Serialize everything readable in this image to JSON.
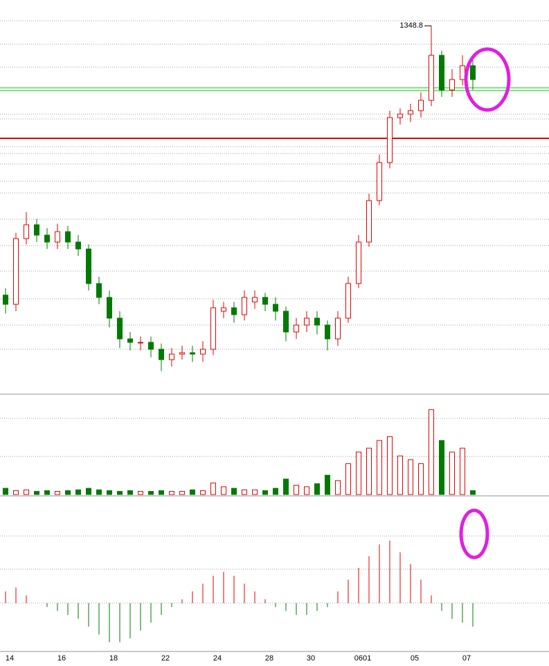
{
  "chart_data": {
    "type": "candlestick",
    "categories": [
      "14",
      null,
      null,
      null,
      null,
      "16",
      null,
      null,
      null,
      null,
      "18",
      null,
      null,
      null,
      null,
      "22",
      null,
      null,
      null,
      null,
      "24",
      null,
      null,
      null,
      null,
      "28",
      null,
      null,
      null,
      "30",
      null,
      null,
      null,
      null,
      "0601",
      null,
      null,
      null,
      null,
      "05",
      null,
      null,
      null,
      null,
      "07",
      null
    ],
    "open": [
      1232,
      1228,
      1256.5,
      1262.5,
      1258,
      1255,
      1259.5,
      1255,
      1252,
      1237,
      1231,
      1222,
      1213,
      1211.5,
      1211.5,
      1208.5,
      1204,
      1206.4,
      1207,
      1206.4,
      1208.5,
      1225,
      1226.5,
      1223.5,
      1229,
      1231,
      1228,
      1225,
      1216,
      1219,
      1222,
      1219,
      1213,
      1222,
      1237,
      1255,
      1273,
      1289.5,
      1309,
      1310.5,
      1312,
      1316.5,
      1336,
      1321,
      1325.5,
      1331.5
    ],
    "high": [
      1235,
      1259,
      1268,
      1265,
      1261,
      1263,
      1262,
      1258,
      1254,
      1240,
      1234,
      1225,
      1216,
      1214,
      1214,
      1211,
      1209,
      1210,
      1210,
      1212,
      1230,
      1229,
      1229,
      1234,
      1234,
      1233,
      1231,
      1227,
      1222,
      1225,
      1225,
      1221,
      1225,
      1240,
      1258,
      1276,
      1293,
      1312,
      1313,
      1315,
      1320,
      1348.8,
      1338,
      1330,
      1336,
      1334
    ],
    "low": [
      1224,
      1225,
      1254,
      1255,
      1252,
      1252,
      1252,
      1249,
      1234,
      1228,
      1218,
      1209,
      1208,
      1208,
      1205,
      1199,
      1201,
      1204,
      1203,
      1203,
      1206,
      1222,
      1220,
      1221,
      1226,
      1225,
      1221,
      1212,
      1213,
      1216,
      1215,
      1208,
      1210,
      1220,
      1235,
      1253,
      1271,
      1287,
      1306,
      1307,
      1309,
      1314,
      1318,
      1318,
      1323,
      1321
    ],
    "close": [
      1228,
      1256.5,
      1262.5,
      1258,
      1255,
      1259.5,
      1255,
      1252,
      1237,
      1231,
      1222,
      1213,
      1211.5,
      1211.5,
      1208.5,
      1204,
      1206.4,
      1207,
      1206.4,
      1208.5,
      1226.5,
      1226.5,
      1223.5,
      1231,
      1231,
      1228,
      1225,
      1216,
      1219,
      1222,
      1219,
      1213,
      1222,
      1237,
      1255,
      1273,
      1289.5,
      1309,
      1310.5,
      1312,
      1316.5,
      1336,
      1321,
      1325.5,
      1331.5,
      1325.5
    ],
    "up_color": "#e00000",
    "down_color": "#007a00",
    "ylim": [
      1189,
      1360
    ],
    "annotation": "1348.8",
    "volume": {
      "values": [
        8,
        5,
        6,
        4,
        5,
        4,
        5,
        6,
        8,
        6,
        5,
        4,
        5,
        4,
        4,
        5,
        4,
        4,
        6,
        5,
        15,
        10,
        8,
        6,
        6,
        5,
        8,
        20,
        12,
        10,
        14,
        25,
        18,
        40,
        55,
        60,
        70,
        75,
        50,
        45,
        40,
        110,
        70,
        55,
        60,
        5
      ],
      "ylim": [
        0,
        130
      ]
    },
    "macd": {
      "values": [
        15,
        20,
        10,
        0,
        -5,
        -10,
        -15,
        -20,
        -30,
        -40,
        -50,
        -50,
        -45,
        -35,
        -25,
        -15,
        -5,
        5,
        15,
        25,
        35,
        40,
        35,
        25,
        15,
        5,
        -5,
        -10,
        -15,
        -15,
        -10,
        -5,
        15,
        30,
        45,
        60,
        75,
        80,
        65,
        50,
        30,
        10,
        -10,
        -20,
        -25,
        -30
      ],
      "ylim": [
        -60,
        130
      ]
    }
  }
}
